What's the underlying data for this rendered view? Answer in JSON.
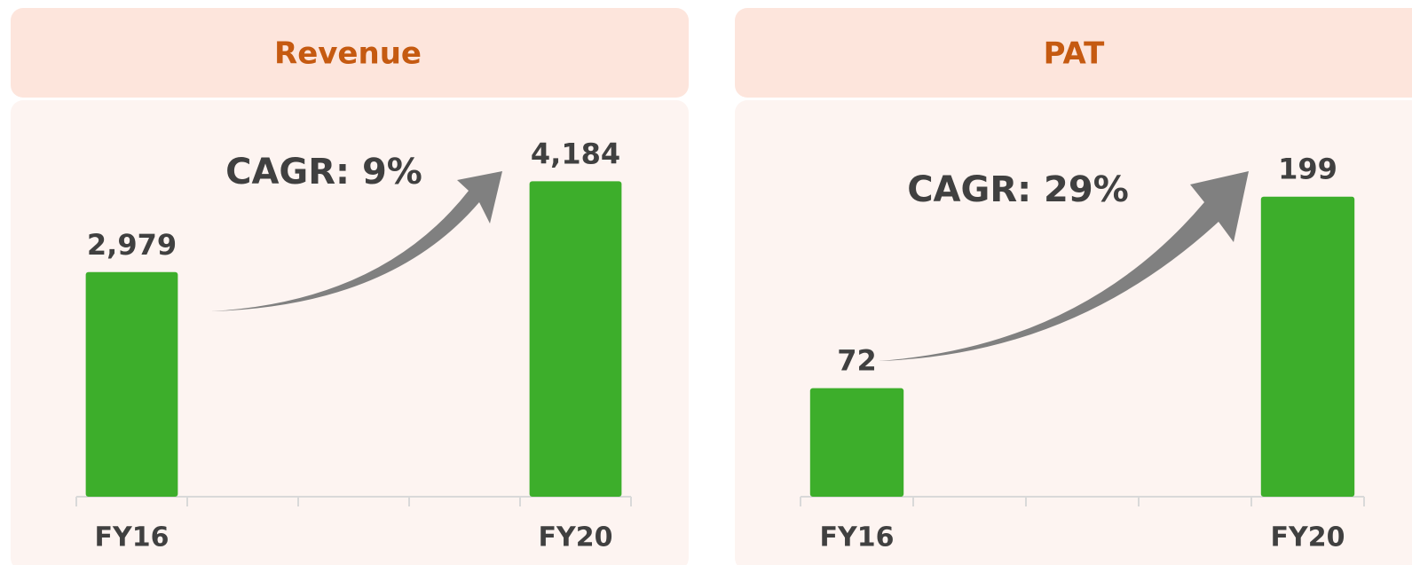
{
  "chart_data": [
    {
      "type": "bar",
      "title": "Revenue",
      "categories": [
        "FY16",
        null,
        null,
        null,
        "FY20"
      ],
      "values": [
        2979,
        null,
        null,
        null,
        4184
      ],
      "value_labels": [
        "2,979",
        null,
        null,
        null,
        "4,184"
      ],
      "color": "#3dae2b",
      "ylim": [
        0,
        5000
      ],
      "annotations": [
        "CAGR: 9%"
      ]
    },
    {
      "type": "bar",
      "title": "PAT",
      "categories": [
        "FY16",
        null,
        null,
        null,
        "FY20"
      ],
      "values": [
        72,
        null,
        null,
        null,
        199
      ],
      "value_labels": [
        "72",
        null,
        null,
        null,
        "199"
      ],
      "color": "#3dae2b",
      "ylim": [
        0,
        250
      ],
      "annotations": [
        "CAGR: 29%"
      ]
    }
  ]
}
